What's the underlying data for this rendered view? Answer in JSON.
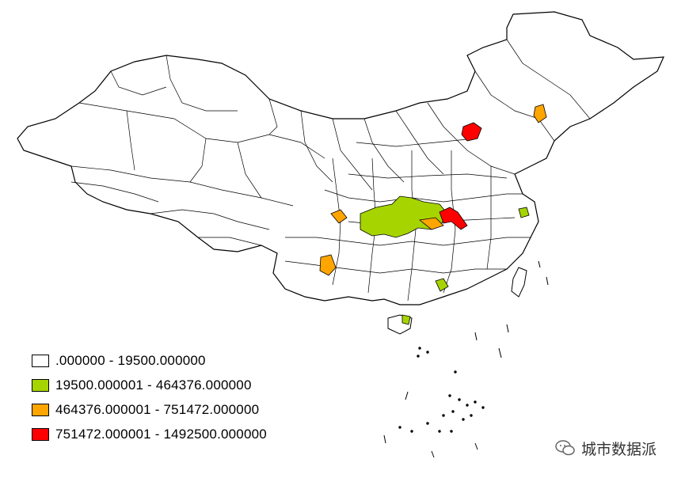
{
  "colors": {
    "class1": "#ffffff",
    "class2": "#a6d400",
    "class3": "#ffa500",
    "class4": "#ff0000",
    "border": "#000000"
  },
  "legend": [
    {
      "label": ".000000 - 19500.000000",
      "color": "#ffffff"
    },
    {
      "label": "19500.000001 - 464376.000000",
      "color": "#a6d400"
    },
    {
      "label": "464376.000001 - 751472.000000",
      "color": "#ffa500"
    },
    {
      "label": "751472.000001 - 1492500.000000",
      "color": "#ff0000"
    }
  ],
  "watermark": {
    "text": "城市数据派",
    "icon": "wechat-icon"
  }
}
